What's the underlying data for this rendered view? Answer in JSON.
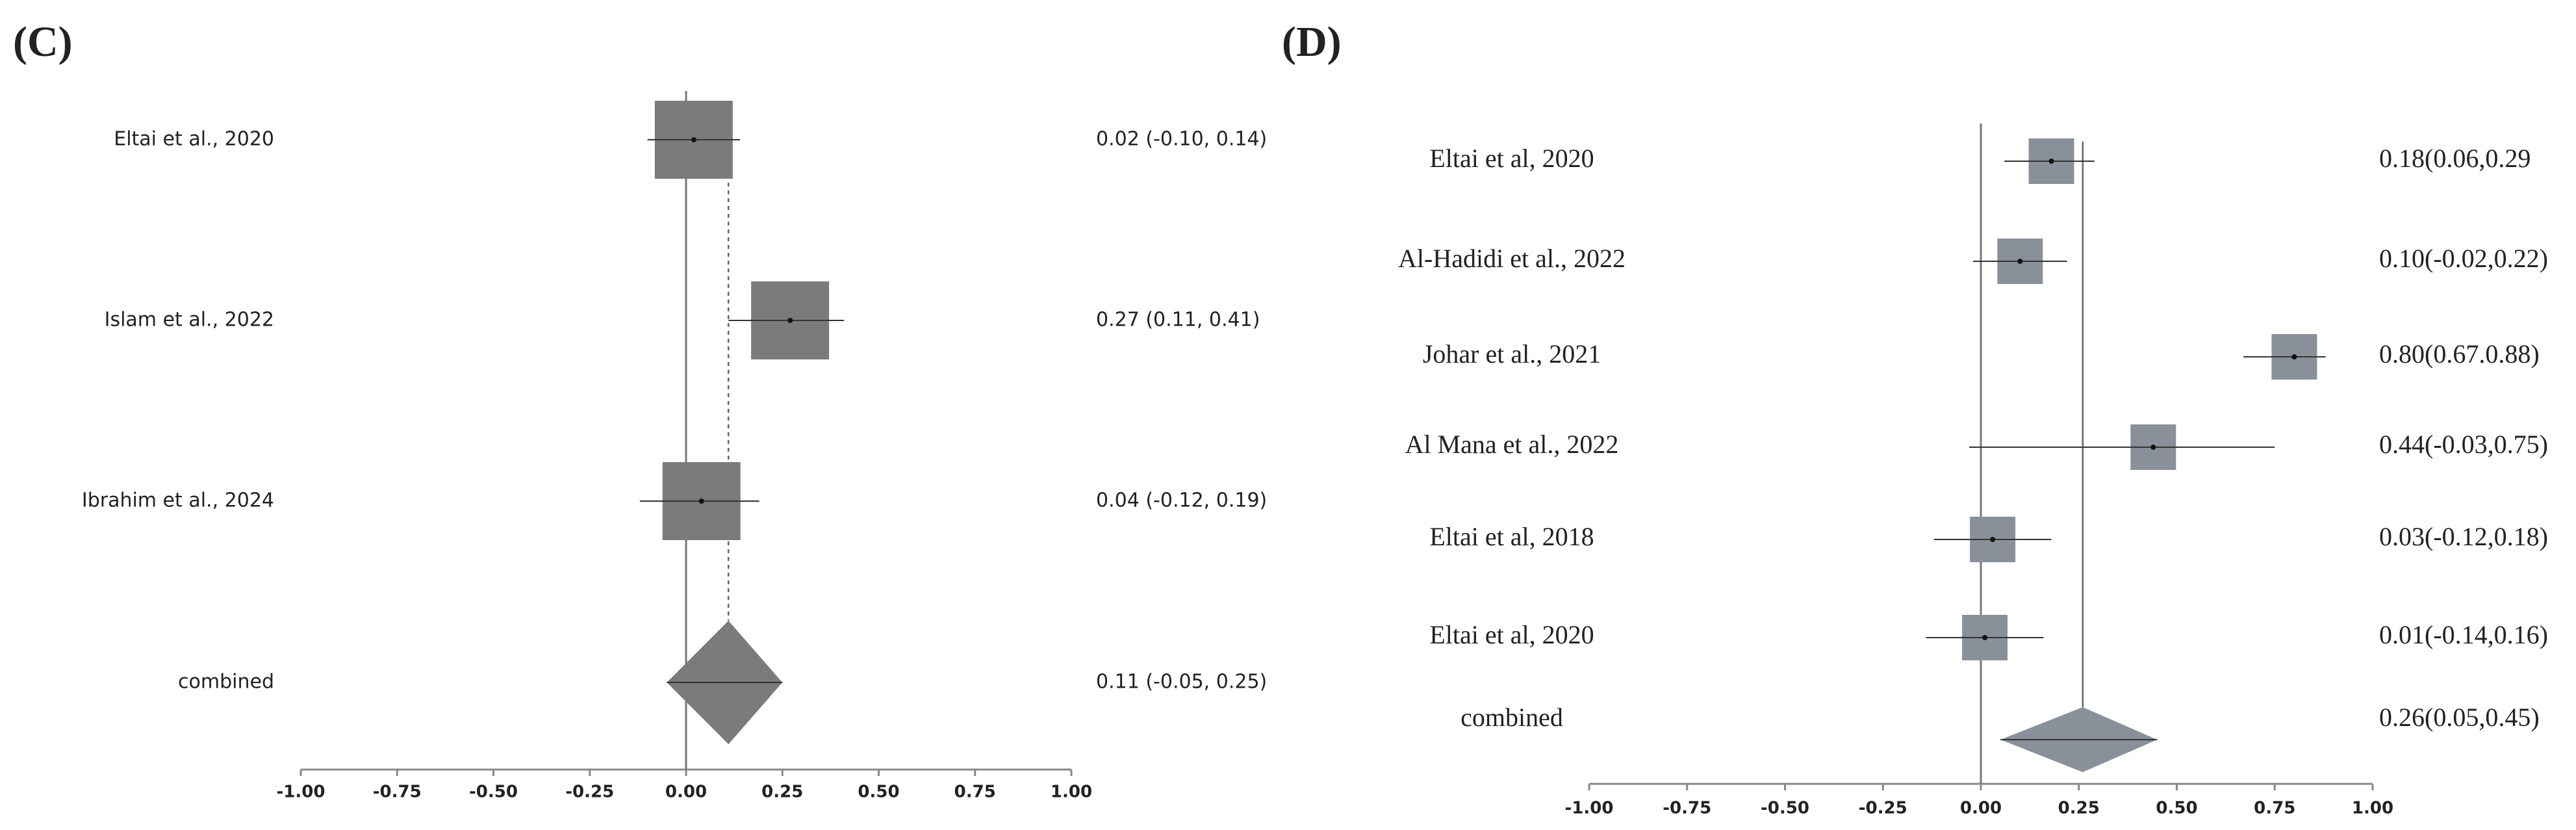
{
  "chart_data": [
    {
      "type": "forest",
      "title": "(C)",
      "categories": [
        "Eltai et al., 2020",
        "Islam et al., 2022",
        "Ibrahim et al., 2024",
        "combined"
      ],
      "values": [
        0.02,
        0.27,
        0.04,
        0.11
      ],
      "lower": [
        -0.1,
        0.11,
        -0.12,
        -0.05
      ],
      "upper": [
        0.14,
        0.41,
        0.19,
        0.25
      ],
      "value_labels": [
        "0.02 (-0.10, 0.14)",
        "0.27 (0.11, 0.41)",
        "0.04 (-0.12, 0.19)",
        "0.11 (-0.05, 0.25)"
      ],
      "xlim": [
        -1,
        1
      ],
      "xticks": [
        {
          "value": -1,
          "label": "-1.00"
        },
        {
          "value": -0.75,
          "label": "-0.75"
        },
        {
          "value": -0.5,
          "label": "-0.50"
        },
        {
          "value": -0.25,
          "label": "-0.25"
        },
        {
          "value": 0,
          "label": "0.00"
        },
        {
          "value": 0.25,
          "label": "0.25"
        },
        {
          "value": 0.5,
          "label": "0.50"
        },
        {
          "value": 0.75,
          "label": "0.75"
        },
        {
          "value": 1,
          "label": "1.00"
        }
      ],
      "color": "#7b7b7b"
    },
    {
      "type": "forest",
      "title": "(D)",
      "categories": [
        "Eltai et al, 2020",
        "Al-Hadidi et al., 2022",
        "Johar et al., 2021",
        "Al Mana et al., 2022",
        "Eltai et al, 2018",
        "Eltai et al, 2020",
        "combined"
      ],
      "values": [
        0.18,
        0.1,
        0.8,
        0.44,
        0.03,
        0.01,
        0.26
      ],
      "lower": [
        0.06,
        -0.02,
        0.67,
        -0.03,
        -0.12,
        -0.14,
        0.05
      ],
      "upper": [
        0.29,
        0.22,
        0.88,
        0.75,
        0.18,
        0.16,
        0.45
      ],
      "value_labels": [
        "0.18(0.06,0.29",
        "0.10(-0.02,0.22)",
        "0.80(0.67.0.88)",
        "0.44(-0.03,0.75)",
        "0.03(-0.12,0.18)",
        "0.01(-0.14,0.16)",
        "0.26(0.05,0.45)"
      ],
      "xlim": [
        -1,
        1
      ],
      "xticks": [
        {
          "value": -1,
          "label": "-1.00"
        },
        {
          "value": -0.75,
          "label": "-0.75"
        },
        {
          "value": -0.5,
          "label": "-0.50"
        },
        {
          "value": -0.25,
          "label": "-0.25"
        },
        {
          "value": 0,
          "label": "0.00"
        },
        {
          "value": 0.25,
          "label": "0.25"
        },
        {
          "value": 0.5,
          "label": "0.50"
        },
        {
          "value": 0.75,
          "label": "0.75"
        },
        {
          "value": 1,
          "label": "1.00"
        }
      ],
      "color": "#8a9099"
    }
  ]
}
